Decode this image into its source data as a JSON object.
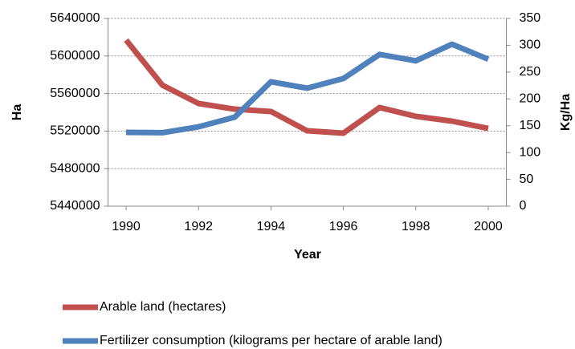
{
  "chart_data": {
    "type": "line",
    "x": [
      1990,
      1991,
      1992,
      1993,
      1994,
      1995,
      1996,
      1997,
      1998,
      1999,
      2000
    ],
    "xlim": [
      1989.5,
      2000.5
    ],
    "xticks": [
      1990,
      1992,
      1994,
      1996,
      1998,
      2000
    ],
    "ylim": [
      5440000,
      5640000
    ],
    "yticks": [
      5440000,
      5480000,
      5520000,
      5560000,
      5600000,
      5640000
    ],
    "y2lim": [
      0,
      350
    ],
    "y2ticks": [
      0,
      50,
      100,
      150,
      200,
      250,
      300,
      350
    ],
    "xlabel": "Year",
    "ylabel": "Ha",
    "y2label": "Kg/Ha",
    "grid": true,
    "series": [
      {
        "name": "Arable land (hectares)",
        "color": "#c0504d",
        "values": [
          5617000,
          5569000,
          5549400,
          5543400,
          5540900,
          5520300,
          5517800,
          5545100,
          5535700,
          5530600,
          5522900
        ]
      },
      {
        "name": "Fertilizer consumption (kilograms per hectare of arable land)",
        "color": "#4f81bd",
        "axis": "y2",
        "values": [
          137.6,
          137,
          148,
          166,
          232,
          220,
          238,
          283,
          271,
          302,
          274
        ]
      }
    ]
  }
}
